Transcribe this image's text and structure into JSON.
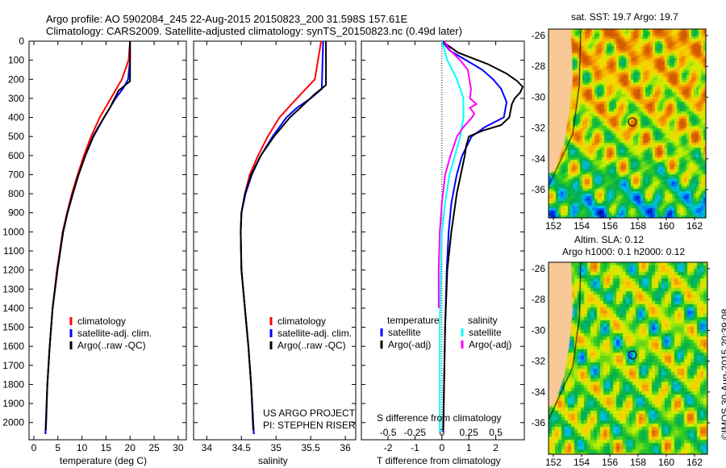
{
  "header": {
    "line1": "Argo profile: AO 5902084_245 22-Aug-2015 20150823_200 31.598S 157.61E",
    "line2": "Climatology: CARS2009. Satellite-adjusted climatology: synTS_20150823.nc (0.49d later)"
  },
  "colors": {
    "climatology": "#ff0000",
    "satellite": "#0000ff",
    "argo": "#000000",
    "sal_satellite": "#00ffff",
    "sal_argo": "#ff00ff",
    "land": "#f8c896"
  },
  "chart_data": [
    {
      "type": "line",
      "name": "temperature",
      "xlabel": "temperature (deg C)",
      "ylabel": "",
      "xlim": [
        -1,
        31.7
      ],
      "ylim": [
        0,
        2090
      ],
      "xticks": [
        0,
        5,
        10,
        15,
        20,
        25,
        30
      ],
      "yticks": [
        0,
        100,
        200,
        300,
        400,
        500,
        600,
        700,
        800,
        900,
        1000,
        1100,
        1200,
        1300,
        1400,
        1500,
        1600,
        1700,
        1800,
        1900,
        2000
      ],
      "legend": [
        "climatology",
        "satellite-adj. clim.",
        "Argo(..raw -QC)"
      ],
      "series": [
        {
          "name": "climatology",
          "color": "#ff0000",
          "depth": [
            0,
            100,
            200,
            300,
            400,
            500,
            600,
            700,
            800,
            900,
            1000,
            1200,
            1400,
            1600,
            1800,
            2060
          ],
          "values": [
            20,
            19.7,
            18.3,
            16,
            13.7,
            11.9,
            10.4,
            9.1,
            7.9,
            6.9,
            6,
            4.8,
            3.9,
            3.3,
            2.8,
            2.4
          ]
        },
        {
          "name": "satellite-adj. clim.",
          "color": "#0000ff",
          "depth": [
            0,
            100,
            200,
            250,
            300,
            400,
            500,
            600,
            700,
            800,
            900,
            1000,
            1200,
            1400,
            1600,
            1800,
            2060
          ],
          "values": [
            20,
            20,
            19.6,
            18.5,
            17,
            14.6,
            12.4,
            10.7,
            9.3,
            8.1,
            7,
            6.1,
            4.9,
            3.9,
            3.3,
            2.8,
            2.4
          ]
        },
        {
          "name": "Argo(..raw -QC)",
          "color": "#000000",
          "depth": [
            0,
            100,
            210,
            230,
            260,
            300,
            350,
            400,
            450,
            500,
            600,
            700,
            800,
            900,
            1000,
            1200,
            1400,
            1600,
            1800,
            2040
          ],
          "values": [
            20,
            20,
            20,
            19,
            17.6,
            16.8,
            15.8,
            14.6,
            13.4,
            12.3,
            10.7,
            9.3,
            8.1,
            7,
            6.1,
            4.9,
            3.9,
            3.3,
            2.8,
            2.5
          ]
        }
      ]
    },
    {
      "type": "line",
      "name": "salinity",
      "xlabel": "salinity",
      "xlim": [
        33.81,
        36.15
      ],
      "ylim": [
        0,
        2090
      ],
      "xticks": [
        34,
        34.5,
        35,
        35.5,
        36
      ],
      "legend": [
        "climatology",
        "satellite-adj. clim.",
        "Argo(..raw -QC)"
      ],
      "series": [
        {
          "name": "climatology",
          "color": "#ff0000",
          "depth": [
            0,
            200,
            300,
            400,
            500,
            600,
            700,
            800,
            900,
            1000,
            1200,
            1400,
            1600,
            1800,
            2060
          ],
          "values": [
            35.65,
            35.56,
            35.3,
            35.05,
            34.88,
            34.74,
            34.62,
            34.55,
            34.5,
            34.49,
            34.5,
            34.55,
            34.6,
            34.64,
            34.68
          ]
        },
        {
          "name": "satellite-adj. clim.",
          "color": "#0000ff",
          "depth": [
            0,
            250,
            300,
            350,
            400,
            500,
            600,
            700,
            800,
            900,
            1000,
            1200,
            1400,
            1600,
            1800,
            2060
          ],
          "values": [
            35.68,
            35.66,
            35.5,
            35.3,
            35.15,
            34.95,
            34.78,
            34.65,
            34.56,
            34.5,
            34.49,
            34.5,
            34.55,
            34.6,
            34.64,
            34.68
          ]
        },
        {
          "name": "Argo(..raw -QC)",
          "color": "#000000",
          "depth": [
            0,
            230,
            280,
            350,
            400,
            500,
            600,
            700,
            800,
            900,
            1000,
            1200,
            1400,
            1600,
            1800,
            2040
          ],
          "values": [
            35.72,
            35.72,
            35.55,
            35.35,
            35.2,
            34.97,
            34.78,
            34.64,
            34.55,
            34.5,
            34.49,
            34.5,
            34.55,
            34.6,
            34.64,
            34.67
          ]
        }
      ]
    },
    {
      "type": "line",
      "name": "difference",
      "xlabel": "T difference from climatology",
      "x2label": "S difference from climatology",
      "xlim": [
        -2.99,
        3.06
      ],
      "ylim": [
        0,
        2090
      ],
      "xticks": [
        -2,
        -1,
        0,
        1,
        2
      ],
      "x2ticks": [
        -0.5,
        -0.25,
        0,
        0.25,
        0.5
      ],
      "s_scale": 4,
      "legend_headers": [
        "temperature",
        "salinity"
      ],
      "legend": [
        "satellite",
        "Argo(-adj)",
        "satellite",
        "Argo(-adj)"
      ],
      "series": [
        {
          "name": "T satellite",
          "color": "#0000ff",
          "kind": "T",
          "depth": [
            0,
            50,
            100,
            150,
            200,
            250,
            320,
            400,
            450,
            500,
            600,
            700,
            850,
            1000,
            1200,
            1500,
            1800,
            2050
          ],
          "values": [
            0,
            0.3,
            0.9,
            1.5,
            1.9,
            2.2,
            2.4,
            2.3,
            1.6,
            1.1,
            0.75,
            0.55,
            0.35,
            0.25,
            0.18,
            0.12,
            0.08,
            0.05
          ]
        },
        {
          "name": "T Argo(-adj)",
          "color": "#000000",
          "kind": "T",
          "depth": [
            0,
            60,
            120,
            170,
            210,
            240,
            270,
            300,
            330,
            400,
            440,
            470,
            500,
            550,
            600,
            700,
            800,
            900,
            1000,
            1200,
            1500,
            1800,
            2040
          ],
          "values": [
            0,
            0.6,
            1.7,
            2.4,
            2.8,
            3.0,
            2.9,
            2.7,
            2.6,
            2.5,
            2.2,
            1.5,
            1.0,
            0.9,
            0.85,
            0.7,
            0.55,
            0.45,
            0.35,
            0.2,
            0.12,
            0.08,
            0.05
          ]
        },
        {
          "name": "S satellite",
          "color": "#00ffff",
          "kind": "S",
          "depth": [
            0,
            100,
            200,
            300,
            400,
            500,
            600,
            700,
            850,
            1000,
            1200,
            1500,
            1800,
            2050
          ],
          "values": [
            0,
            0.05,
            0.14,
            0.2,
            0.2,
            0.17,
            0.12,
            0.07,
            0.03,
            0.0,
            -0.01,
            -0.02,
            -0.02,
            -0.02
          ]
        },
        {
          "name": "S Argo(-adj)",
          "color": "#ff00ff",
          "kind": "S",
          "depth": [
            0,
            50,
            100,
            150,
            250,
            300,
            330,
            350,
            380,
            400,
            450,
            500,
            600,
            700,
            850,
            1000,
            1200,
            1400
          ],
          "values": [
            0.02,
            0.08,
            0.17,
            0.24,
            0.27,
            0.26,
            0.32,
            0.26,
            0.3,
            0.28,
            0.2,
            0.14,
            0.08,
            0.03,
            0.0,
            -0.02,
            -0.03,
            -0.03
          ]
        }
      ]
    }
  ],
  "credit": [
    "US ARGO PROJECT",
    "PI: STEPHEN RISER"
  ],
  "maps": {
    "sst": {
      "title": "sat. SST: 19.7  Argo: 19.7",
      "lon_ticks": [
        "152",
        "154",
        "156",
        "158",
        "160",
        "162"
      ],
      "lat_ticks": [
        "-26",
        "-28",
        "-30",
        "-32",
        "-34",
        "-36"
      ],
      "argo_lon": 157.6,
      "argo_lat": -31.6
    },
    "sla": {
      "title1": "Altim. SLA: 0.12",
      "title2": "Argo h1000: 0.1  h2000: 0.12",
      "lon_ticks": [
        "152",
        "154",
        "156",
        "158",
        "160",
        "162"
      ],
      "lat_ticks": [
        "-26",
        "-28",
        "-30",
        "-32",
        "-34",
        "-36"
      ],
      "argo_lon": 157.6,
      "argo_lat": -31.6
    }
  },
  "copyright": "©IMOS 30-Aug-2015 20:39:08"
}
